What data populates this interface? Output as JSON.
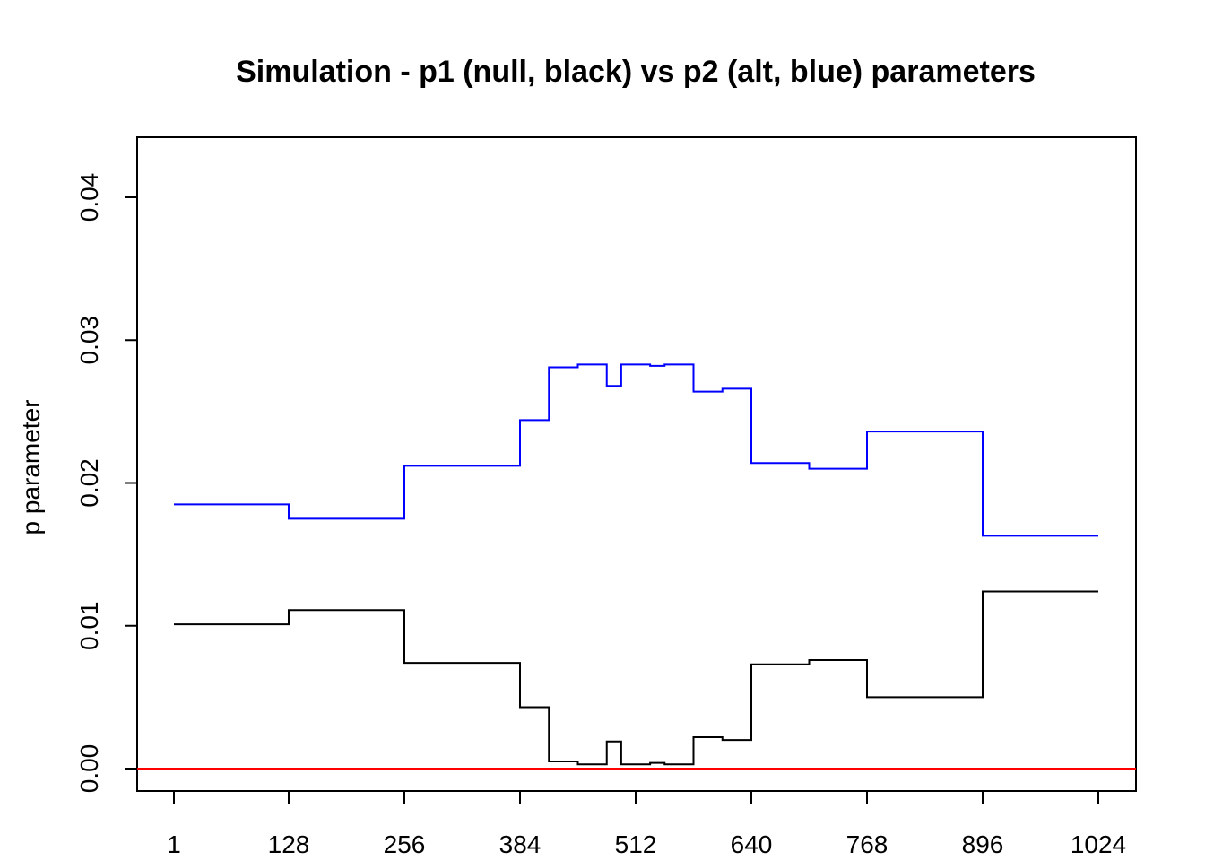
{
  "chart_data": {
    "type": "line",
    "title": "Simulation - p1 (null, black) vs p2 (alt, blue) parameters",
    "xlabel": "",
    "ylabel": "p parameter",
    "xlim": [
      1,
      1024
    ],
    "ylim": [
      0,
      0.04
    ],
    "x_ticks": [
      1,
      128,
      256,
      384,
      512,
      640,
      768,
      896,
      1024
    ],
    "y_ticks": [
      0,
      0.01,
      0.02,
      0.03,
      0.04
    ],
    "y_tick_labels": [
      "0.00",
      "0.01",
      "0.02",
      "0.03",
      "0.04"
    ],
    "step": "post",
    "series": [
      {
        "color": "#0000ff",
        "x": [
          1,
          128,
          256,
          384,
          416,
          448,
          480,
          496,
          528,
          544,
          576,
          608,
          640,
          704,
          768,
          896,
          1024
        ],
        "y": [
          0.0185,
          0.0175,
          0.0212,
          0.0244,
          0.0281,
          0.0283,
          0.0268,
          0.0283,
          0.0282,
          0.0283,
          0.0264,
          0.0266,
          0.0214,
          0.021,
          0.0236,
          0.0163,
          0.0163
        ]
      },
      {
        "color": "#000000",
        "x": [
          1,
          128,
          256,
          384,
          416,
          448,
          480,
          496,
          528,
          544,
          576,
          608,
          640,
          704,
          768,
          896,
          1024
        ],
        "y": [
          0.0101,
          0.0111,
          0.0074,
          0.0043,
          0.0005,
          0.0003,
          0.0019,
          0.0003,
          0.0004,
          0.0003,
          0.0022,
          0.002,
          0.0073,
          0.0076,
          0.005,
          0.0124,
          0.0124
        ]
      }
    ],
    "reference_line": {
      "y": 0,
      "color": "#ff0000"
    }
  }
}
